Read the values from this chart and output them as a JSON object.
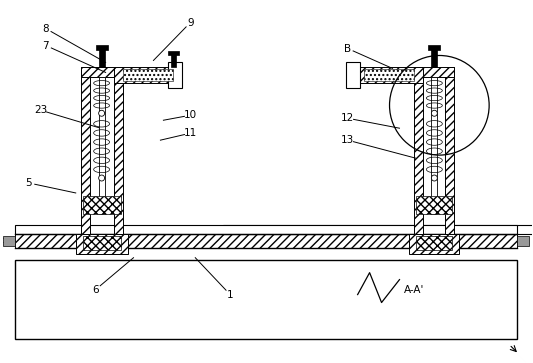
{
  "bg": "#ffffff",
  "fig_w": 5.33,
  "fig_h": 3.63,
  "annotations": [
    [
      "8",
      45,
      28,
      105,
      62
    ],
    [
      "7",
      45,
      45,
      105,
      72
    ],
    [
      "23",
      40,
      110,
      100,
      128
    ],
    [
      "5",
      28,
      183,
      75,
      193
    ],
    [
      "9",
      190,
      22,
      153,
      60
    ],
    [
      "10",
      190,
      115,
      163,
      120
    ],
    [
      "11",
      190,
      133,
      160,
      140
    ],
    [
      "6",
      95,
      290,
      133,
      258
    ],
    [
      "1",
      230,
      295,
      195,
      258
    ],
    [
      "B",
      348,
      48,
      393,
      68
    ],
    [
      "12",
      348,
      118,
      400,
      128
    ],
    [
      "13",
      348,
      140,
      416,
      158
    ],
    [
      "A-A'",
      415,
      290,
      null,
      null
    ]
  ]
}
